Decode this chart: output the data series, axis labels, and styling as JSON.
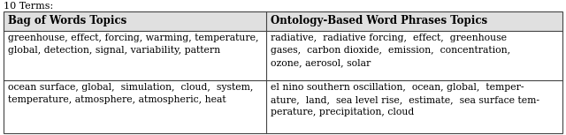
{
  "title_text": "10 Terms:",
  "col1_header": "Bag of Words Topics",
  "col2_header": "Ontology-Based Word Phrases Topics",
  "row1_col1": "greenhouse, effect, forcing, warming, temperature,\nglobal, detection, signal, variability, pattern",
  "row1_col2": "radiative,  radiative forcing,  effect,  greenhouse\ngases,  carbon dioxide,  emission,  concentration,\nozone, aerosol, solar",
  "row2_col1": "ocean surface, global,  simulation,  cloud,  system,\ntemperature, atmosphere, atmospheric, heat",
  "row2_col2": "el nino southern oscillation,  ocean, global,  temper-\nature,  land,  sea level rise,  estimate,  sea surface tem-\nperature, precipitation, cloud",
  "header_bg": "#e0e0e0",
  "bg_color": "#ffffff",
  "border_color": "#444444",
  "header_fontsize": 8.5,
  "body_fontsize": 7.8,
  "col_split": 0.47,
  "title_fontsize": 8.0
}
